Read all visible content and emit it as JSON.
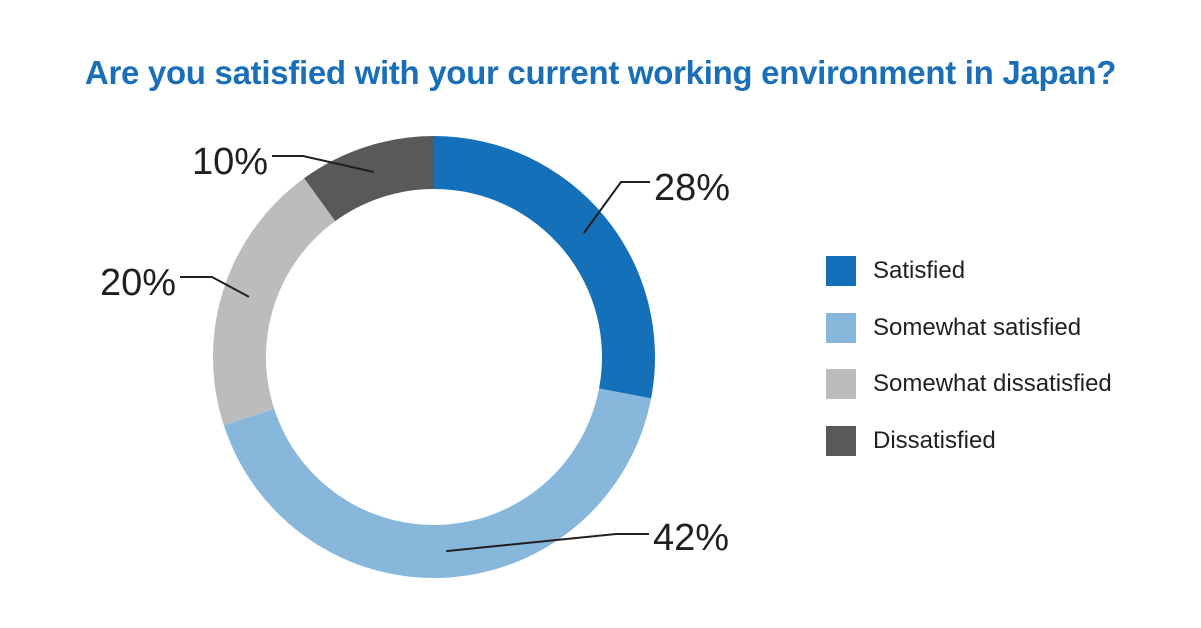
{
  "title": "Are you satisfied with your current working environment in Japan?",
  "chart_data": {
    "type": "pie",
    "style": "donut",
    "title": "Are you satisfied with your current working environment in Japan?",
    "slices": [
      {
        "label": "Satisfied",
        "value": 28,
        "display": "28%",
        "color": "#1470b8"
      },
      {
        "label": "Somewhat satisfied",
        "value": 42,
        "display": "42%",
        "color": "#88b7dc"
      },
      {
        "label": "Somewhat dissatisfied",
        "value": 20,
        "display": "20%",
        "color": "#bdbcbc"
      },
      {
        "label": "Dissatisfied",
        "value": 10,
        "display": "10%",
        "color": "#59585a"
      }
    ],
    "start": "12 o'clock",
    "direction": "clockwise",
    "legend": {
      "position": "right",
      "entries": [
        "Satisfied",
        "Somewhat satisfied",
        "Somewhat dissatisfied",
        "Dissatisfied"
      ]
    }
  }
}
